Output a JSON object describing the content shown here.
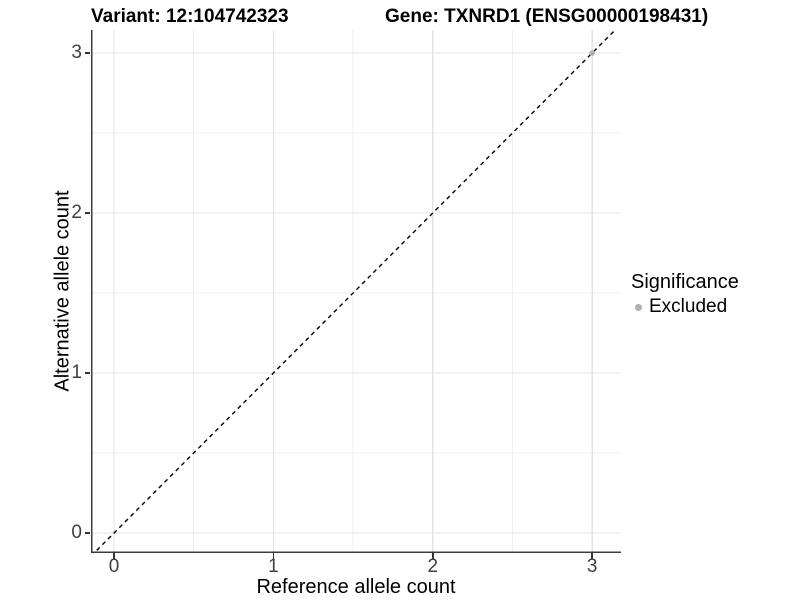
{
  "chart_data": {
    "type": "scatter",
    "titles": {
      "variant": "Variant: 12:104742323",
      "gene": "Gene: TXNRD1 (ENSG00000198431)"
    },
    "xlabel": "Reference allele count",
    "ylabel": "Alternative allele count",
    "x_ticks": [
      0,
      1,
      2,
      3
    ],
    "y_ticks": [
      0,
      1,
      2,
      3
    ],
    "xlim": [
      -0.15,
      3.18
    ],
    "ylim": [
      -0.14,
      3.14
    ],
    "grid": "major+minor",
    "grid_major_color": "#e3e3e3",
    "grid_minor_color": "#f0f0f0",
    "axis_line_color": "#3c3c3c",
    "identity_line": {
      "type": "identity",
      "from": [
        -0.25,
        -0.25
      ],
      "to": [
        3.3,
        3.3
      ],
      "linetype": "dashed",
      "color": "#000000"
    },
    "points": [
      {
        "x": 3,
        "y": 3,
        "significance": "Excluded",
        "color": "#b0b0b0"
      }
    ],
    "legend": {
      "title": "Significance",
      "position": "right",
      "entries": [
        {
          "label": "Excluded",
          "color": "#b0b0b0",
          "marker": "circle"
        }
      ]
    }
  }
}
